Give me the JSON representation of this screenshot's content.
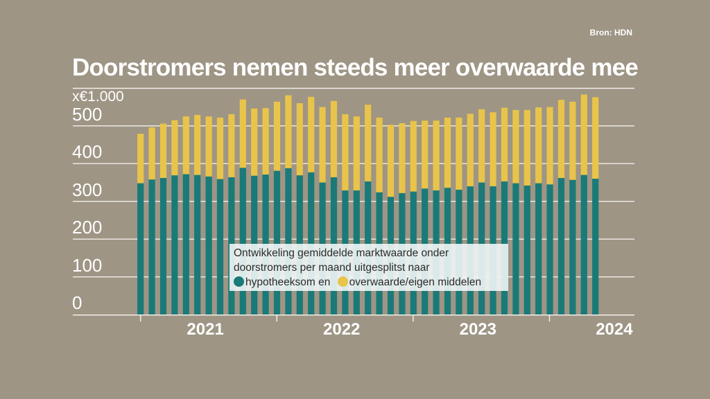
{
  "source": "Bron: HDN",
  "chart_data": {
    "type": "bar",
    "stacked": true,
    "title": "Doorstromers nemen steeds meer overwaarde mee",
    "ylabel": "x€1.000",
    "ylim": [
      0,
      590
    ],
    "yticks": [
      "0",
      "100",
      "200",
      "300",
      "400",
      "500"
    ],
    "grid": true,
    "x_tick_labels": [
      "2021",
      "2022",
      "2023",
      "2024"
    ],
    "period": "monthly, Jan 2021 – May 2024",
    "legend": {
      "text_line1": "Ontwikkeling gemiddelde marktwaarde onder",
      "text_line2": "doorstromers per maand uitgesplitst naar",
      "placement": "center-bottom"
    },
    "series": [
      {
        "name": "hypotheeksom en",
        "color": "#1a7a78",
        "values": [
          348,
          358,
          362,
          369,
          372,
          370,
          366,
          359,
          364,
          389,
          368,
          371,
          381,
          388,
          369,
          377,
          350,
          364,
          329,
          329,
          353,
          324,
          312,
          322,
          326,
          334,
          329,
          336,
          331,
          340,
          350,
          340,
          353,
          348,
          342,
          348,
          345,
          362,
          357,
          370,
          360
        ]
      },
      {
        "name": "overwaarde/eigen middelen",
        "color": "#e8c44a",
        "values": [
          131,
          138,
          144,
          146,
          153,
          159,
          159,
          163,
          167,
          181,
          178,
          176,
          183,
          193,
          191,
          200,
          200,
          202,
          202,
          196,
          203,
          198,
          191,
          185,
          187,
          180,
          185,
          186,
          191,
          192,
          194,
          196,
          195,
          194,
          200,
          201,
          205,
          207,
          207,
          213,
          216
        ]
      }
    ]
  }
}
